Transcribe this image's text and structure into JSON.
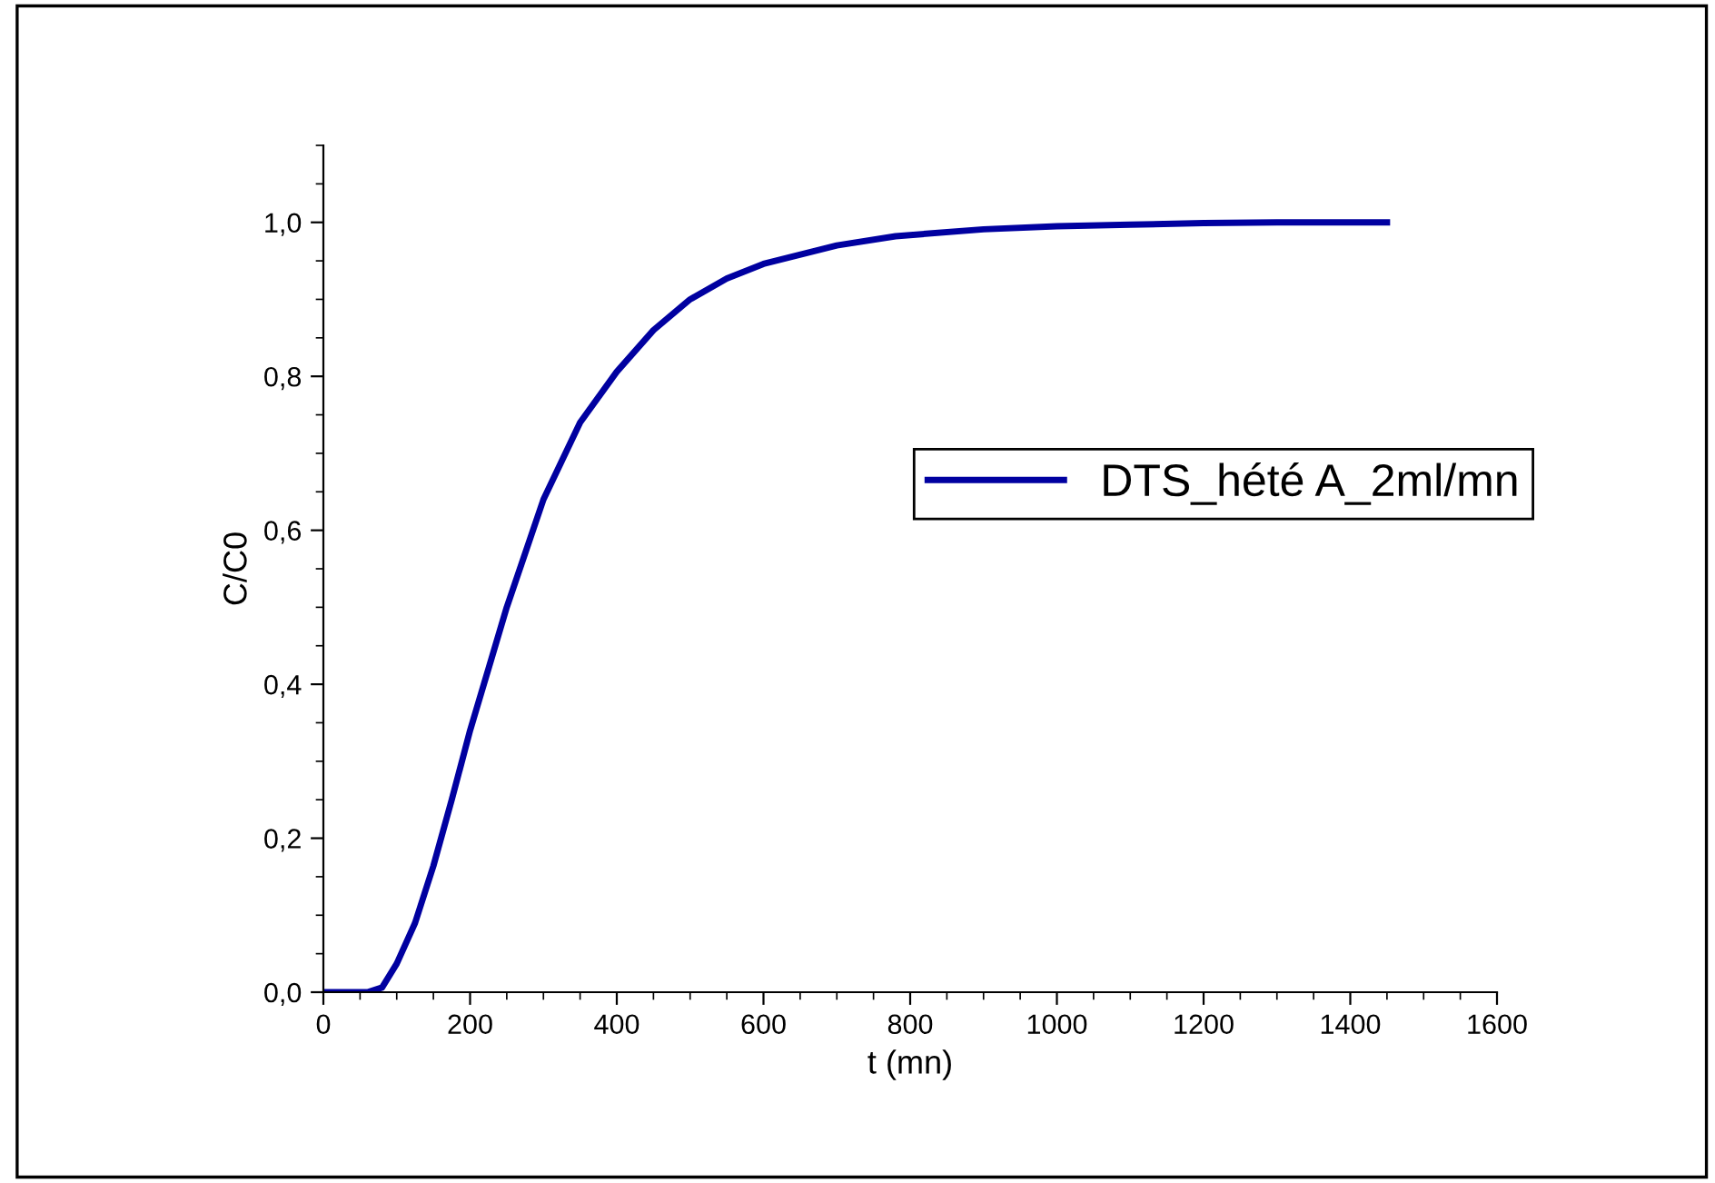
{
  "chart_data": {
    "type": "line",
    "xlabel": "t (mn)",
    "ylabel": "C/C0",
    "xlim": [
      0,
      1600
    ],
    "ylim": [
      0,
      1.1
    ],
    "xticks": [
      0,
      200,
      400,
      600,
      800,
      1000,
      1200,
      1400,
      1600
    ],
    "yticks": [
      {
        "value": 0,
        "label": "0,0"
      },
      {
        "value": 0.2,
        "label": "0,2"
      },
      {
        "value": 0.4,
        "label": "0,4"
      },
      {
        "value": 0.6,
        "label": "0,6"
      },
      {
        "value": 0.8,
        "label": "0,8"
      },
      {
        "value": 1.0,
        "label": "1,0"
      }
    ],
    "legend": "right",
    "grid": false,
    "series": [
      {
        "name": "DTS_hété A_2ml/mn",
        "color": "#0000a0",
        "x": [
          0,
          40,
          60,
          80,
          100,
          125,
          150,
          175,
          200,
          225,
          250,
          275,
          300,
          350,
          400,
          450,
          500,
          550,
          600,
          700,
          780,
          900,
          1000,
          1100,
          1200,
          1300,
          1450
        ],
        "values": [
          0,
          0,
          0,
          0.006,
          0.037,
          0.09,
          0.164,
          0.25,
          0.34,
          0.42,
          0.5,
          0.57,
          0.64,
          0.74,
          0.806,
          0.86,
          0.9,
          0.927,
          0.946,
          0.97,
          0.982,
          0.991,
          0.995,
          0.997,
          0.999,
          1.0,
          1.0
        ]
      }
    ]
  }
}
